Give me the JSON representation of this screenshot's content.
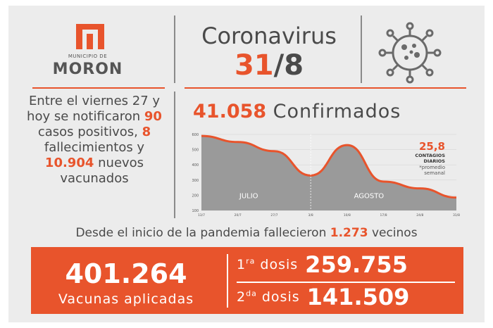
{
  "logo": {
    "municipio": "MUNICIPIO DE",
    "name": "MORON"
  },
  "header": {
    "title": "Coronavirus",
    "date_day": "31",
    "date_sep": "/",
    "date_month": "8"
  },
  "summary": {
    "line1": "Entre el viernes 27 y hoy se notificaron",
    "cases_num": "90",
    "cases_text": "casos positivos,",
    "deaths_num": "8",
    "deaths_text": "fallecimientos y",
    "vaccinated_num": "10.904",
    "vaccinated_text": "nuevos vacunados"
  },
  "confirmed": {
    "value": "41.058",
    "label": "Confirmados"
  },
  "chart_data": {
    "type": "area",
    "x": [
      "13/7",
      "20/7",
      "27/7",
      "3/8",
      "10/8",
      "17/8",
      "24/8",
      "31/8"
    ],
    "y_ticks": [
      100,
      200,
      300,
      400,
      500,
      600
    ],
    "ylim": [
      100,
      600
    ],
    "values": [
      590,
      550,
      490,
      330,
      530,
      290,
      245,
      185
    ],
    "period_labels": [
      "JULIO",
      "AGOSTO"
    ],
    "annotation": {
      "value": "25,8",
      "line1": "CONTAGIOS",
      "line2": "DIARIOS",
      "note1": "*promedio",
      "note2": "semanal"
    },
    "colors": {
      "fill": "#9a9a9a",
      "line": "#e8542c"
    }
  },
  "deaths_total": {
    "prefix": "Desde el inicio de la pandemia fallecieron",
    "value": "1.273",
    "suffix": "vecinos"
  },
  "vaccines": {
    "total": "401.264",
    "total_label": "Vacunas aplicadas",
    "dose1_num": "1",
    "dose1_sup": "ra",
    "dose1_word": "dosis",
    "dose1_value": "259.755",
    "dose2_num": "2",
    "dose2_sup": "da",
    "dose2_word": "dosis",
    "dose2_value": "141.509"
  },
  "colors": {
    "accent": "#e8542c",
    "text": "#4a4a4a",
    "background": "#ececec"
  }
}
